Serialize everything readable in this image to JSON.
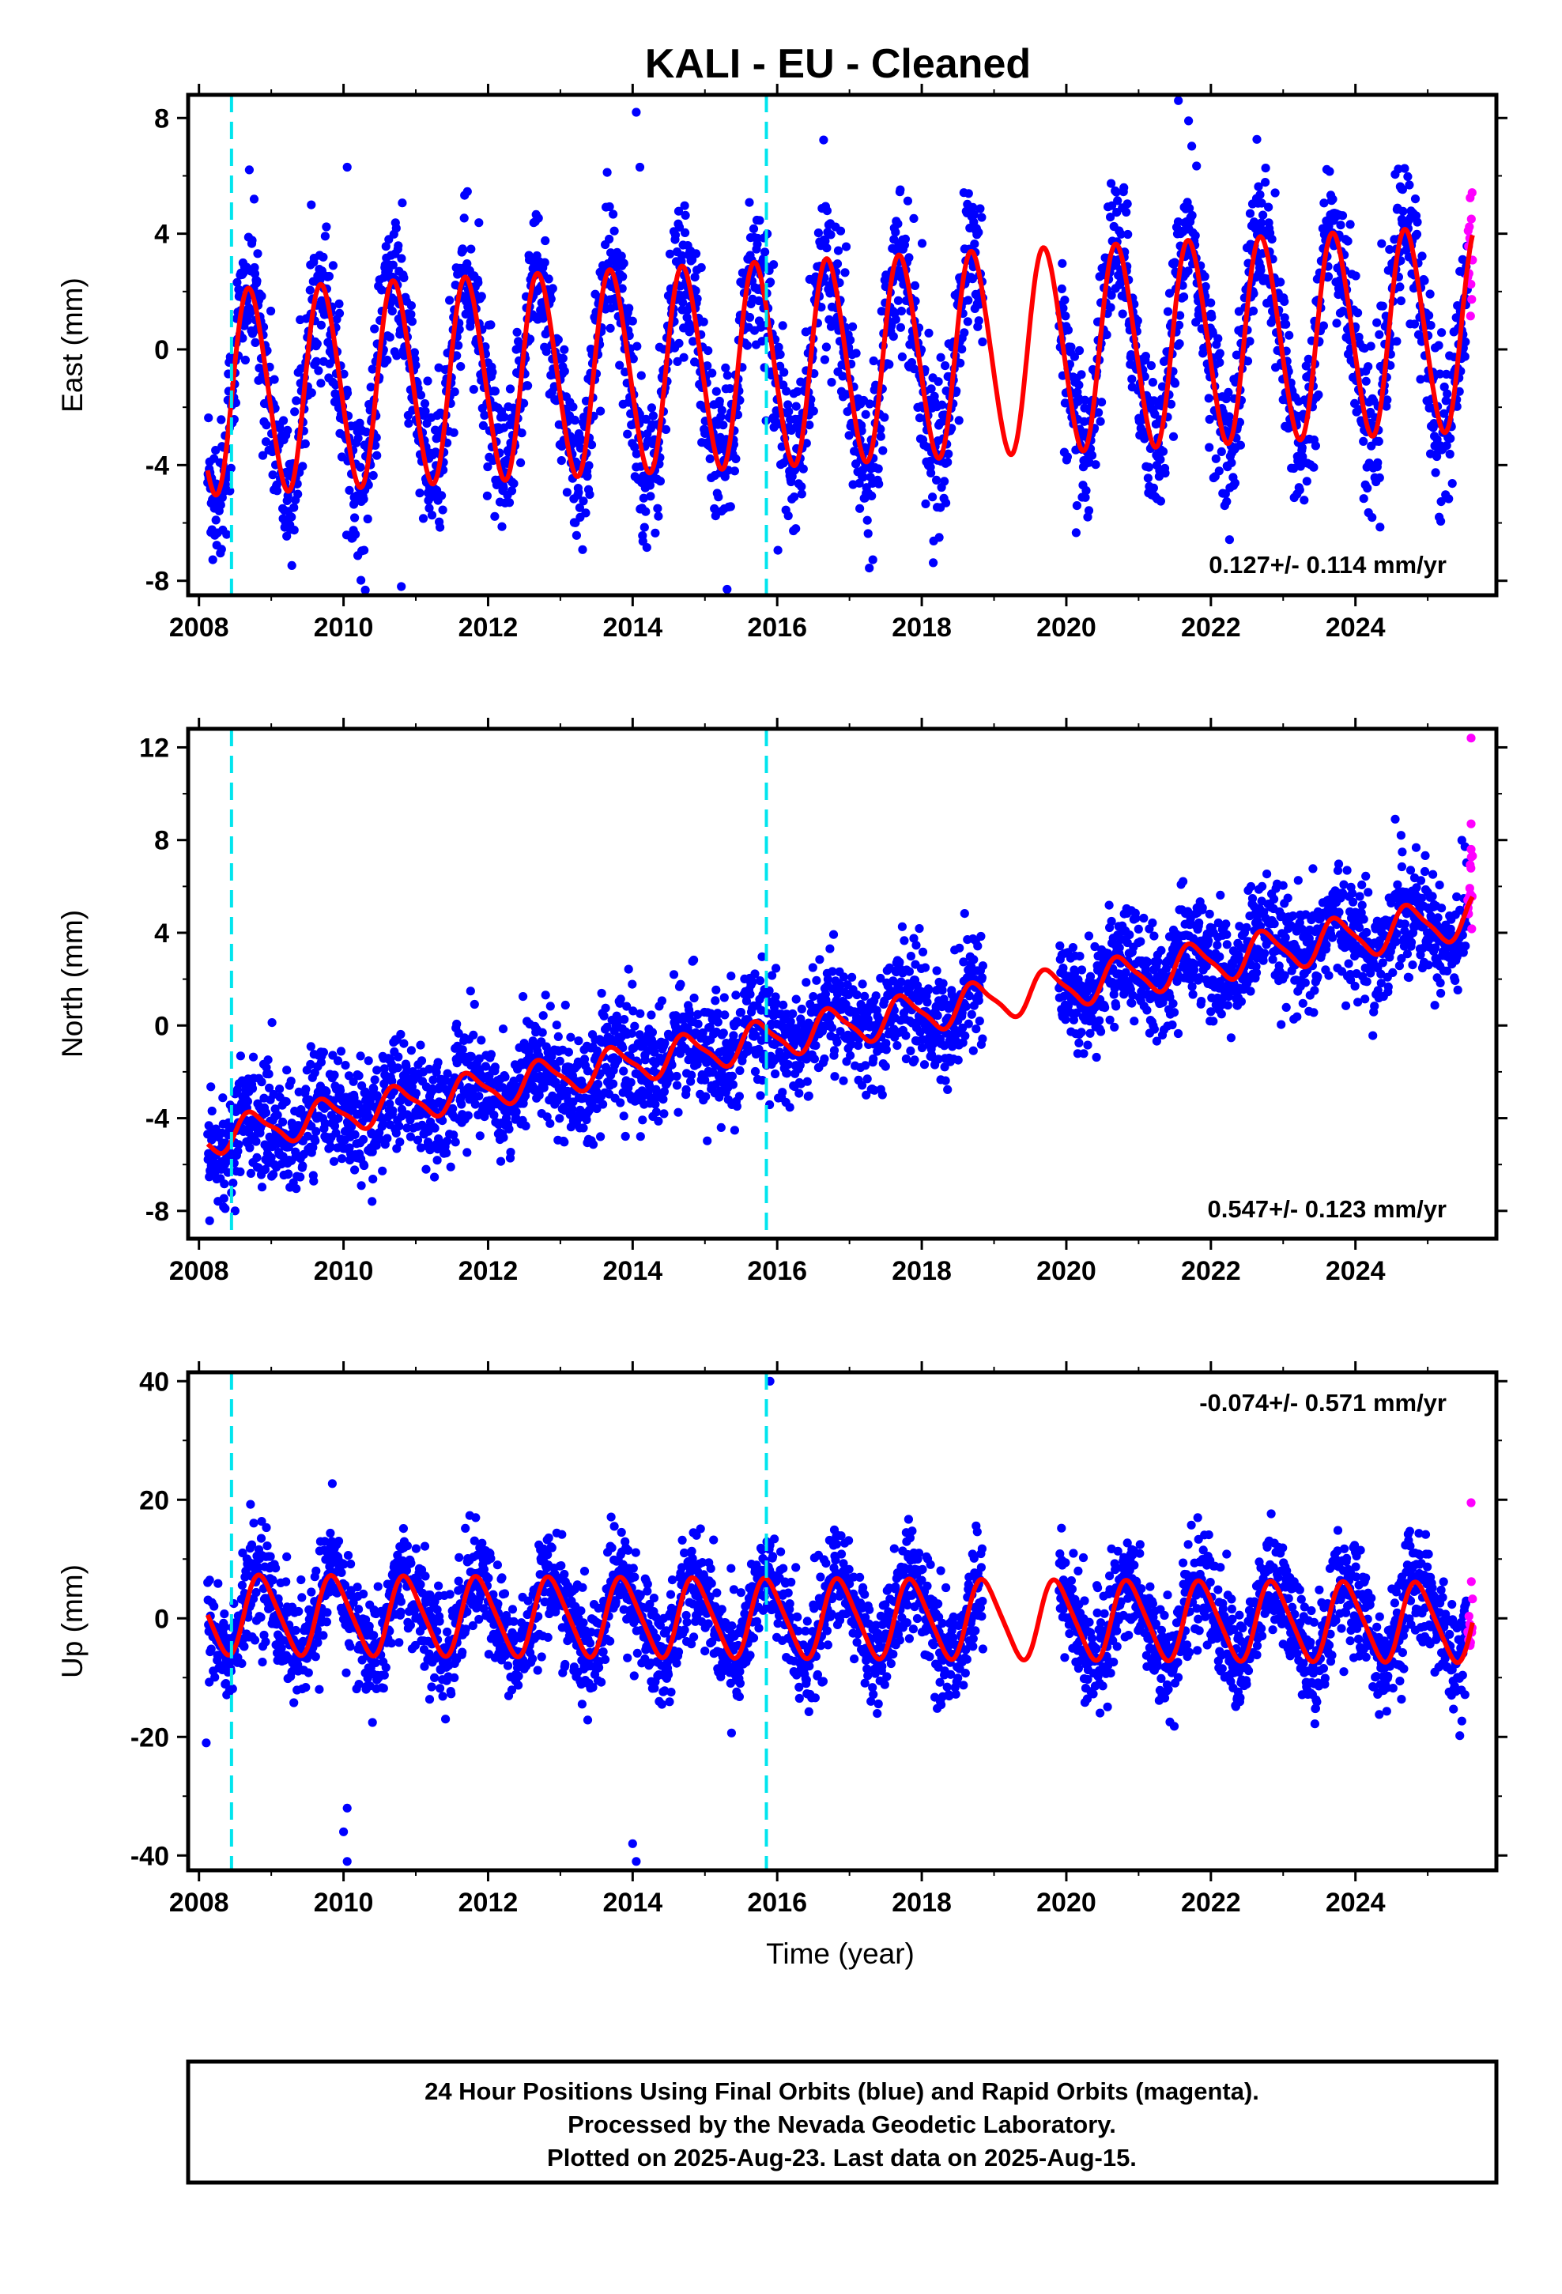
{
  "title": "KALI  - EU - Cleaned",
  "colors": {
    "final_orbits": "#0000ff",
    "rapid_orbits": "#ff00ff",
    "model": "#ff0000",
    "steps": "#00e5ee"
  },
  "footer": {
    "line1": "24 Hour Positions Using Final Orbits (blue) and Rapid Orbits (magenta).",
    "line2": "Processed by the Nevada Geodetic Laboratory.",
    "line3": "Plotted on 2025-Aug-23. Last data on 2025-Aug-15."
  },
  "chart_data": [
    {
      "type": "scatter",
      "component": "east",
      "ylabel": "East (mm)",
      "rate_label": "0.127+/- 0.114 mm/yr",
      "xlim": [
        2007.85,
        2025.95
      ],
      "ylim": [
        -8.5,
        8.8
      ],
      "xticks": [
        2008,
        2010,
        2012,
        2014,
        2016,
        2018,
        2020,
        2022,
        2024
      ],
      "xtick_labels": [
        "2008",
        "2010",
        "2012",
        "2014",
        "2016",
        "2018",
        "2020",
        "2022",
        "2024"
      ],
      "yticks": [
        -8,
        -4,
        0,
        4,
        8
      ],
      "ytick_labels": [
        "-8",
        "-4",
        "0",
        "4",
        "8"
      ],
      "step_lines": [
        2008.45,
        2015.85
      ],
      "model": {
        "offset": -0.5,
        "rate": 0.127,
        "amp_start": 3.5,
        "amp_end": 3.5,
        "phase": 0.46,
        "semi_amp": 0.3,
        "t0": 2016
      },
      "scatter": {
        "noise": 1.3,
        "rapid_from": 2025.55
      },
      "gaps": [
        [
          2018.85,
          2019.9
        ]
      ],
      "outliers": [
        [
          2014.05,
          8.2
        ],
        [
          2014.1,
          6.3
        ],
        [
          2010.8,
          -8.2
        ],
        [
          2021.55,
          8.6
        ],
        [
          2010.05,
          6.3
        ]
      ]
    },
    {
      "type": "scatter",
      "component": "north",
      "ylabel": "North (mm)",
      "rate_label": "0.547+/- 0.123 mm/yr",
      "xlim": [
        2007.85,
        2025.95
      ],
      "ylim": [
        -9.2,
        12.8
      ],
      "xticks": [
        2008,
        2010,
        2012,
        2014,
        2016,
        2018,
        2020,
        2022,
        2024
      ],
      "xtick_labels": [
        "2008",
        "2010",
        "2012",
        "2014",
        "2016",
        "2018",
        "2020",
        "2022",
        "2024"
      ],
      "yticks": [
        -8,
        -4,
        0,
        4,
        8,
        12
      ],
      "ytick_labels": [
        "-8",
        "-4",
        "0",
        "4",
        "8",
        "12"
      ],
      "step_lines": [
        2008.45,
        2015.85
      ],
      "model": {
        "offset": -4.9,
        "rate": 0.547,
        "amp_start": 0.7,
        "amp_end": 0.9,
        "phase": 0.5,
        "semi_amp": 0.2,
        "t0": 2008
      },
      "scatter": {
        "noise": 1.2,
        "rapid_from": 2025.55
      },
      "gaps": [
        [
          2018.85,
          2019.9
        ]
      ],
      "outliers": [
        [
          2025.6,
          12.4
        ],
        [
          2025.6,
          8.7
        ],
        [
          2025.6,
          7.6
        ],
        [
          2024.55,
          8.9
        ],
        [
          2008.5,
          -8.0
        ]
      ]
    },
    {
      "type": "scatter",
      "component": "up",
      "ylabel": "Up (mm)",
      "xlabel": "Time (year)",
      "rate_label": "-0.074+/- 0.571 mm/yr",
      "xlim": [
        2007.85,
        2025.95
      ],
      "ylim": [
        -42.5,
        41.5
      ],
      "xticks": [
        2008,
        2010,
        2012,
        2014,
        2016,
        2018,
        2020,
        2022,
        2024
      ],
      "xtick_labels": [
        "2008",
        "2010",
        "2012",
        "2014",
        "2016",
        "2018",
        "2020",
        "2022",
        "2024"
      ],
      "yticks": [
        -40,
        -20,
        0,
        20,
        40
      ],
      "ytick_labels": [
        "-40",
        "-20",
        "0",
        "20",
        "40"
      ],
      "step_lines": [
        2008.45,
        2015.85
      ],
      "model": {
        "offset": 0.0,
        "rate": -0.074,
        "amp_start": 6.5,
        "amp_end": 6.5,
        "phase": 0.62,
        "semi_amp": 1.0,
        "t0": 2016
      },
      "scatter": {
        "noise": 4.5,
        "rapid_from": 2025.55
      },
      "gaps": [
        [
          2018.85,
          2019.9
        ]
      ],
      "outliers": [
        [
          2015.9,
          40.0
        ],
        [
          2010.05,
          -41.0
        ],
        [
          2010.0,
          -36.0
        ],
        [
          2010.05,
          -32.0
        ],
        [
          2014.05,
          -41.0
        ],
        [
          2014.0,
          -38.0
        ],
        [
          2008.1,
          -21.0
        ],
        [
          2025.6,
          19.5
        ]
      ]
    }
  ]
}
